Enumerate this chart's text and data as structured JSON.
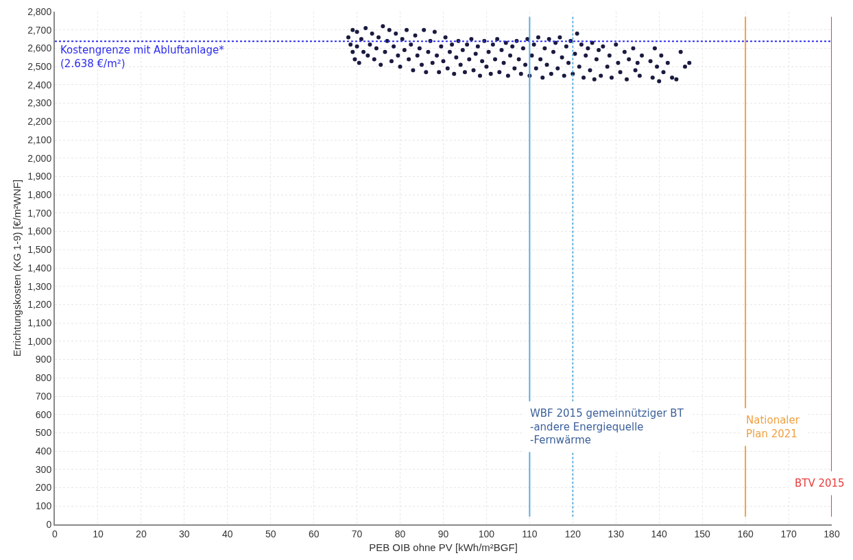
{
  "chart_data": {
    "type": "scatter",
    "xlabel": "PEB OIB ohne PV [kWh/m²BGF]",
    "ylabel": "Errichtungskosten (KG 1-9) [€/m²WNF]",
    "x": [
      68,
      68.5,
      69,
      69,
      69.5,
      70,
      70,
      70.5,
      71,
      71.5,
      72,
      72.5,
      73,
      73.5,
      74,
      74.5,
      75,
      75.5,
      76,
      76.5,
      77,
      77.5,
      78,
      78.5,
      79,
      79.5,
      80,
      80.5,
      81,
      81.5,
      82,
      82.5,
      83,
      83.5,
      84,
      84.5,
      85,
      85.5,
      86,
      86.5,
      87,
      87.5,
      88,
      88.5,
      89,
      89.5,
      90,
      90.5,
      91,
      91.5,
      92,
      92.5,
      93,
      93.5,
      94,
      94.5,
      95,
      95.5,
      96,
      96.5,
      97,
      97.5,
      98,
      98.5,
      99,
      99.5,
      100,
      100.5,
      101,
      101.5,
      102,
      102.5,
      103,
      103.5,
      104,
      104.5,
      105,
      105.5,
      106,
      106.5,
      107,
      107.5,
      108,
      108.5,
      109,
      109.5,
      110,
      110.5,
      111,
      111.5,
      112,
      112.5,
      113,
      113.5,
      114,
      114.5,
      115,
      115.5,
      116,
      116.5,
      117,
      117.5,
      118,
      118.5,
      119,
      119.5,
      120,
      120.5,
      121,
      121.5,
      122,
      122.5,
      123,
      123.5,
      124,
      124.5,
      125,
      125.5,
      126,
      126.5,
      127,
      128,
      128.5,
      129,
      130,
      130.5,
      131,
      132,
      132.5,
      133,
      134,
      134.5,
      135,
      135.5,
      136,
      138,
      138.5,
      139,
      139.5,
      140,
      140.5,
      141,
      142,
      143,
      144,
      145,
      146,
      147
    ],
    "values": [
      2660,
      2620,
      2700,
      2580,
      2540,
      2690,
      2610,
      2520,
      2650,
      2580,
      2710,
      2560,
      2620,
      2680,
      2540,
      2600,
      2660,
      2510,
      2720,
      2580,
      2640,
      2700,
      2530,
      2610,
      2680,
      2560,
      2500,
      2650,
      2590,
      2700,
      2540,
      2620,
      2480,
      2670,
      2560,
      2600,
      2510,
      2700,
      2470,
      2580,
      2640,
      2520,
      2690,
      2560,
      2470,
      2610,
      2530,
      2660,
      2490,
      2580,
      2620,
      2460,
      2550,
      2640,
      2510,
      2590,
      2470,
      2620,
      2540,
      2650,
      2480,
      2570,
      2610,
      2450,
      2530,
      2640,
      2500,
      2580,
      2460,
      2620,
      2540,
      2650,
      2470,
      2590,
      2520,
      2630,
      2450,
      2560,
      2610,
      2490,
      2640,
      2540,
      2460,
      2600,
      2510,
      2650,
      2450,
      2560,
      2620,
      2490,
      2660,
      2540,
      2440,
      2600,
      2510,
      2650,
      2460,
      2580,
      2630,
      2490,
      2660,
      2550,
      2450,
      2610,
      2520,
      2640,
      2460,
      2570,
      2680,
      2500,
      2620,
      2440,
      2560,
      2600,
      2480,
      2630,
      2430,
      2540,
      2590,
      2450,
      2610,
      2500,
      2560,
      2440,
      2620,
      2520,
      2470,
      2580,
      2430,
      2540,
      2600,
      2480,
      2520,
      2450,
      2560,
      2530,
      2440,
      2600,
      2500,
      2420,
      2560,
      2470,
      2520,
      2440,
      2430,
      2580,
      2500,
      2520
    ],
    "color": "#1a1a40",
    "marker": "circle",
    "grid": true,
    "xlim": [
      0,
      180
    ],
    "xticks": [
      0,
      10,
      20,
      30,
      40,
      50,
      60,
      70,
      80,
      90,
      100,
      110,
      120,
      130,
      140,
      150,
      160,
      170,
      180
    ],
    "ylim": [
      0,
      2800
    ],
    "yticks": [
      0,
      100,
      200,
      300,
      400,
      500,
      600,
      700,
      800,
      900,
      {
        "value": 1000,
        "label": "1,000"
      },
      {
        "value": 1100,
        "label": "1,100"
      },
      {
        "value": 1200,
        "label": "1,200"
      },
      {
        "value": 1300,
        "label": "1,300"
      },
      {
        "value": 1400,
        "label": "1,400"
      },
      {
        "value": 1500,
        "label": "1,500"
      },
      {
        "value": 1600,
        "label": "1,600"
      },
      {
        "value": 1700,
        "label": "1,700"
      },
      {
        "value": 1800,
        "label": "1,800"
      },
      {
        "value": 1900,
        "label": "1,900"
      },
      {
        "value": 2000,
        "label": "2,000"
      },
      {
        "value": 2100,
        "label": "2,100"
      },
      {
        "value": 2200,
        "label": "2,200"
      },
      {
        "value": 2300,
        "label": "2,300"
      },
      {
        "value": 2400,
        "label": "2,400"
      },
      {
        "value": 2500,
        "label": "2,500"
      },
      {
        "value": 2600,
        "label": "2,600"
      },
      {
        "value": 2700,
        "label": "2,700"
      },
      {
        "value": 2800,
        "label": "2,800"
      }
    ],
    "ref_lines": [
      {
        "axis": "y",
        "value": 2638,
        "label": "Kostengrenze mit Abluftanlage*\n(2.638 €/m²)",
        "color": "#2b2bef",
        "line_style": "dotted"
      },
      {
        "axis": "x",
        "value": 110,
        "label": "WBF 2015 gemeinnütziger BT\n-andere Energiequelle\n-Fernwärme",
        "color": "#5aaedc",
        "line_style": "solid"
      },
      {
        "axis": "x",
        "value": 120,
        "color": "#5aaedc",
        "line_style": "dotted"
      },
      {
        "axis": "x",
        "value": 160,
        "label": "Nationaler\nPlan 2021",
        "color": "#f0a040",
        "line_style": "solid"
      },
      {
        "axis": "x",
        "value": 180,
        "label": "BTV 2015",
        "color": "#e83a3a",
        "line_style": "solid"
      }
    ]
  }
}
